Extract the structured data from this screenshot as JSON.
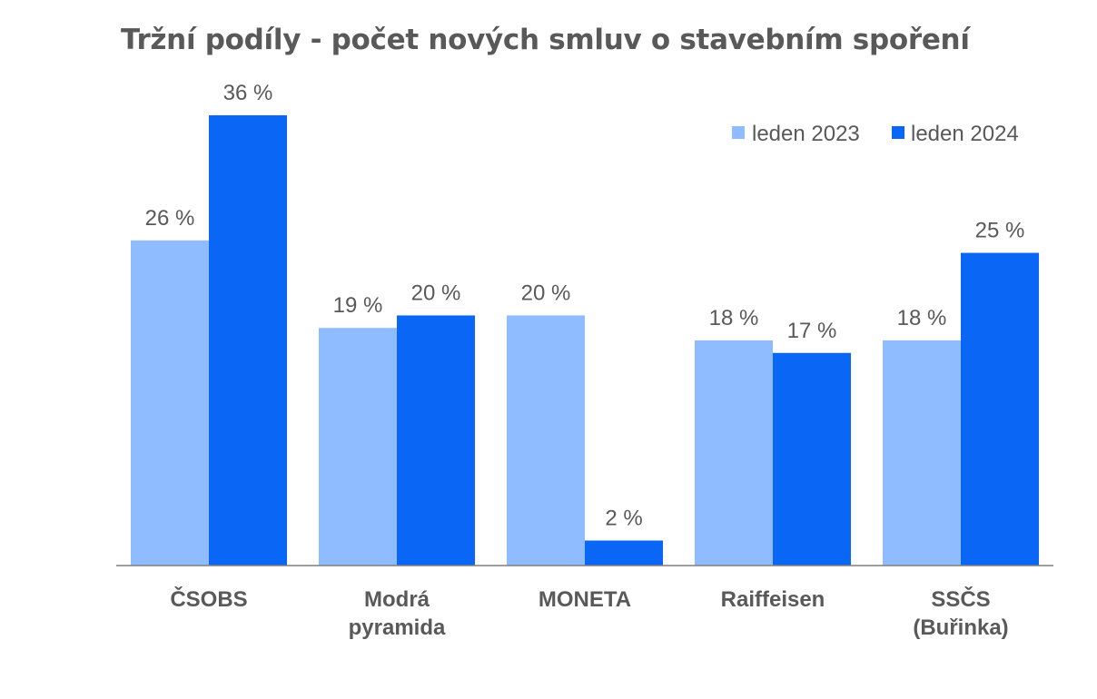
{
  "chart_data": {
    "type": "bar",
    "title": "Tržní podíly - počet nových smluv o stavebním spoření",
    "xlabel": "",
    "ylabel": "",
    "categories": [
      [
        "ČSOBS"
      ],
      [
        "Modrá",
        "pyramida"
      ],
      [
        "MONETA"
      ],
      [
        "Raiffeisen"
      ],
      [
        "SSČS",
        "(Buřinka)"
      ]
    ],
    "series": [
      {
        "name": "leden 2023",
        "color": "#8FBCFF",
        "values": [
          26,
          19,
          20,
          18,
          18
        ],
        "labels": [
          "26 %",
          "19 %",
          "20 %",
          "18 %",
          "18 %"
        ]
      },
      {
        "name": "leden 2024",
        "color": "#0A66F5",
        "values": [
          36,
          20,
          2,
          17,
          25
        ],
        "labels": [
          "36 %",
          "20 %",
          "2 %",
          "17 %",
          "25 %"
        ]
      }
    ],
    "ylim": [
      0,
      36
    ],
    "grid": false,
    "legend_position": "top-right",
    "axis_color": "#7F7F7F"
  }
}
